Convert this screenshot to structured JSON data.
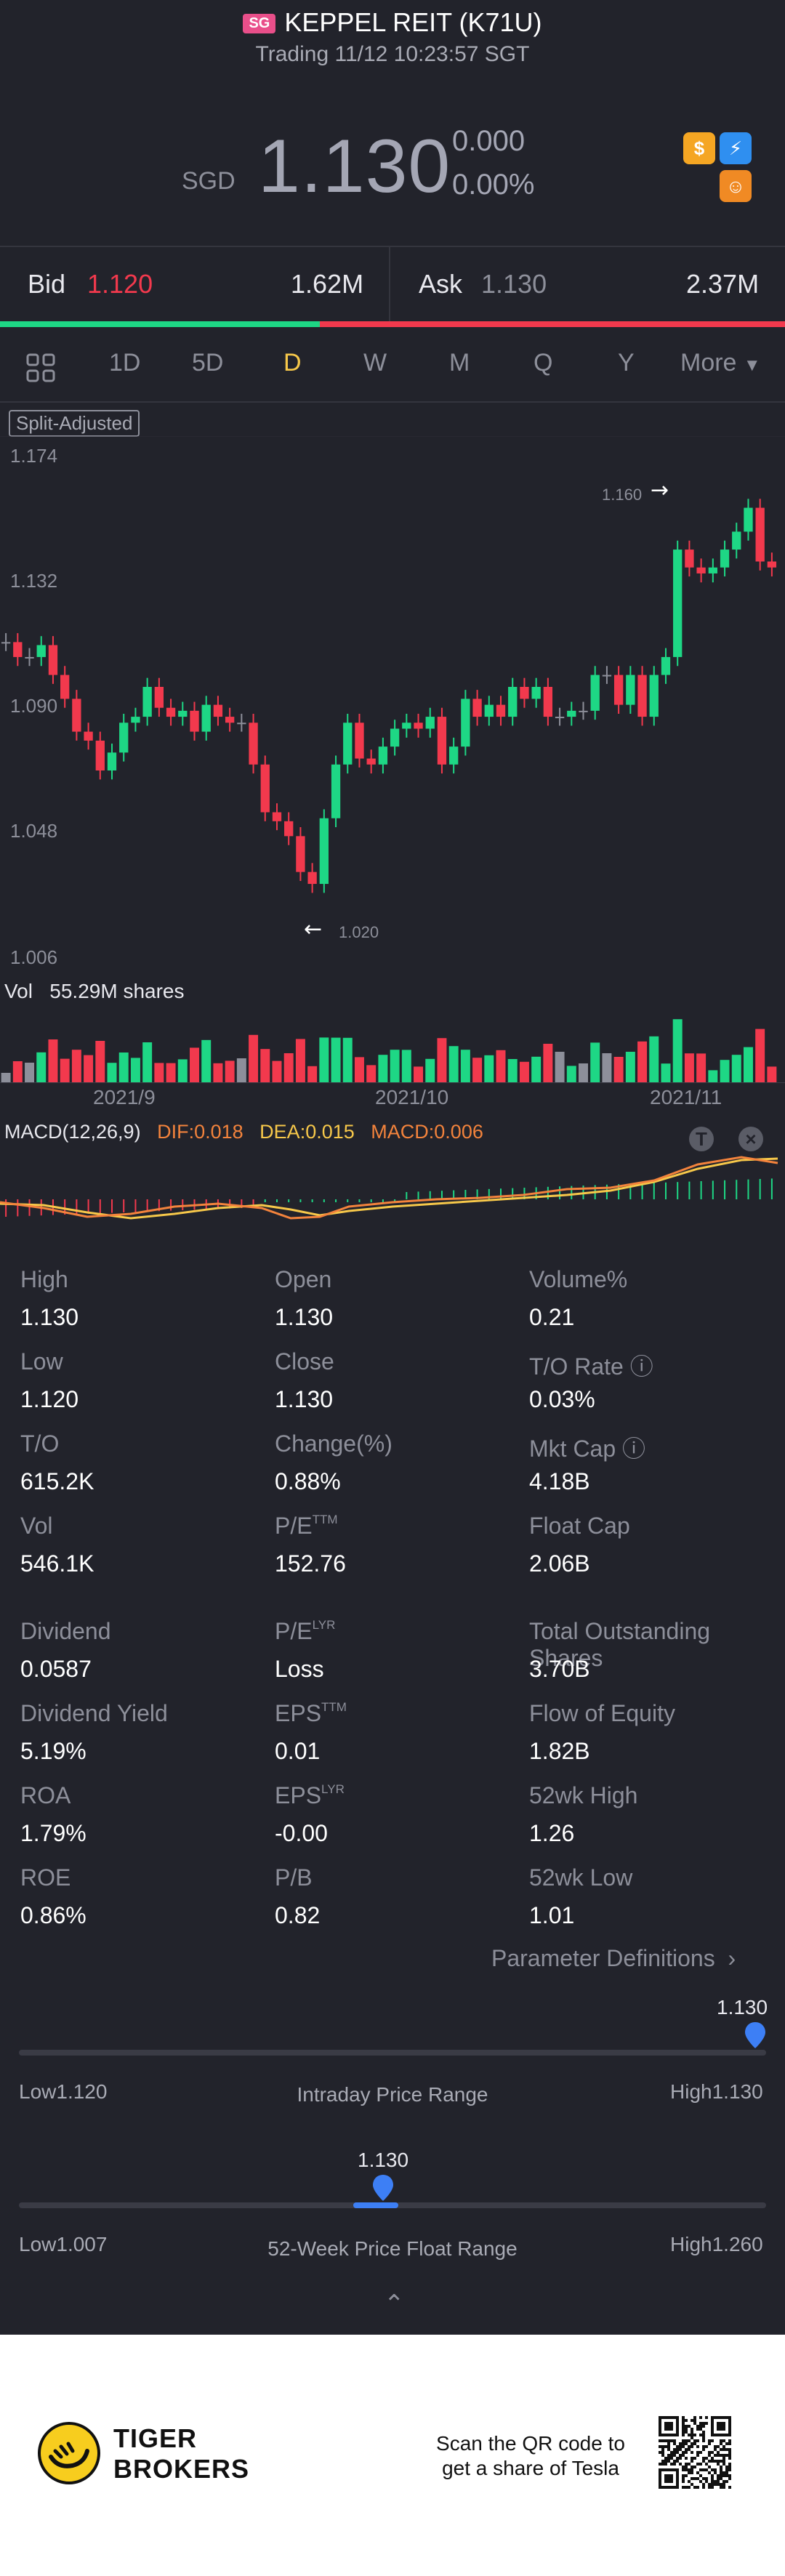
{
  "header": {
    "market_badge": "SG",
    "title": "KEPPEL REIT (K71U)",
    "trading_status": "Trading 11/12 10:23:57 SGT",
    "currency": "SGD",
    "price": "1.130",
    "change": "0.000",
    "change_pct": "0.00%",
    "icons": [
      "dollar-badge-icon",
      "lightning-icon",
      "capital-icon"
    ]
  },
  "bid_ask": {
    "bid_label": "Bid",
    "bid_price": "1.120",
    "bid_size": "1.62M",
    "ask_label": "Ask",
    "ask_price": "1.130",
    "ask_size": "2.37M",
    "bid_share": 0.41
  },
  "tabs": {
    "items": [
      "1D",
      "5D",
      "D",
      "W",
      "M",
      "Q",
      "Y",
      "More"
    ],
    "active": "D"
  },
  "chart": {
    "adjust_badge": "Split-Adjusted",
    "y_ticks": [
      "1.174",
      "1.132",
      "1.090",
      "1.048",
      "1.006"
    ],
    "max_marker": "1.160",
    "min_marker": "1.020",
    "volume_label": "Vol",
    "volume_value": "55.29M shares",
    "x_ticks": [
      "2021/9",
      "2021/10",
      "2021/11"
    ],
    "macd_title": "MACD(12,26,9)",
    "dif": "DIF:0.018",
    "dea": "DEA:0.015",
    "macd": "MACD:0.006"
  },
  "stats": [
    {
      "label": "High",
      "value": "1.130"
    },
    {
      "label": "Open",
      "value": "1.130"
    },
    {
      "label": "Volume%",
      "value": "0.21"
    },
    {
      "label": "Low",
      "value": "1.120"
    },
    {
      "label": "Close",
      "value": "1.130"
    },
    {
      "label": "T/O Rate",
      "value": "0.03%"
    },
    {
      "label": "T/O",
      "value": "615.2K"
    },
    {
      "label": "Change(%)",
      "value": "0.88%"
    },
    {
      "label": "Mkt Cap",
      "value": "4.18B"
    },
    {
      "label": "Vol",
      "value": "546.1K"
    },
    {
      "label": "P/E",
      "sup": "TTM",
      "value": "152.76"
    },
    {
      "label": "Float Cap",
      "value": "2.06B"
    },
    {
      "label": "Dividend",
      "value": "0.0587"
    },
    {
      "label": "P/E",
      "sup": "LYR",
      "value": "Loss"
    },
    {
      "label": "Total Outstanding Shares",
      "value": "3.70B"
    },
    {
      "label": "Dividend Yield",
      "value": "5.19%"
    },
    {
      "label": "EPS",
      "sup": "TTM",
      "value": "0.01"
    },
    {
      "label": "Flow of Equity",
      "value": "1.82B"
    },
    {
      "label": "ROA",
      "value": "1.79%"
    },
    {
      "label": "EPS",
      "sup": "LYR",
      "value": "-0.00"
    },
    {
      "label": "52wk High",
      "value": "1.26"
    },
    {
      "label": "ROE",
      "value": "0.86%"
    },
    {
      "label": "P/B",
      "value": "0.82"
    },
    {
      "label": "52wk Low",
      "value": "1.01"
    }
  ],
  "param_definitions": "Parameter Definitions",
  "intraday_range": {
    "current": "1.130",
    "label": "Intraday Price Range",
    "low": "Low1.120",
    "high": "High1.130",
    "position": 1.0
  },
  "week52_range": {
    "current": "1.130",
    "label": "52-Week Price Float Range",
    "low": "Low1.007",
    "high": "High1.260",
    "position": 0.49
  },
  "footer": {
    "brand_line1": "TIGER",
    "brand_line2": "BROKERS",
    "scan_line1": "Scan the QR code to",
    "scan_line2": "get a share of Tesla"
  },
  "colors": {
    "up": "#1ed785",
    "down": "#f2394d",
    "neutral": "#8d8f9a",
    "active_tab": "#f7c84a"
  }
}
